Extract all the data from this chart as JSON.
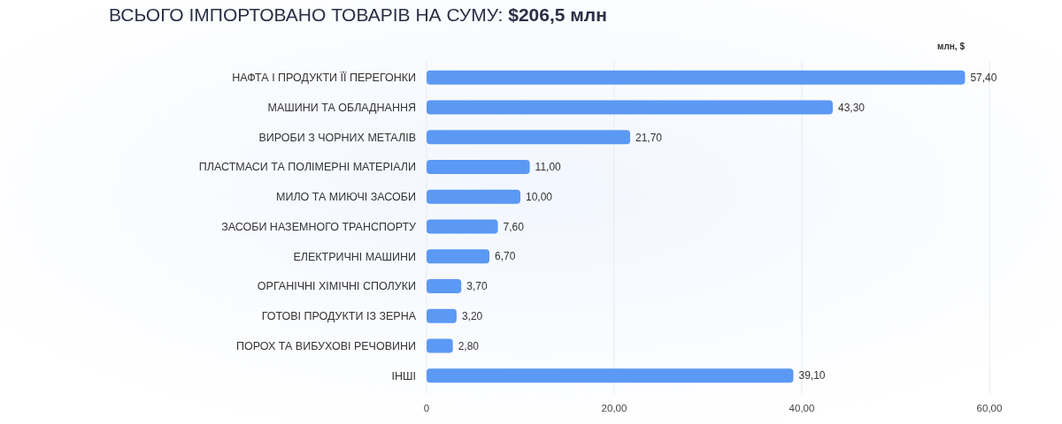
{
  "chart_data": {
    "type": "bar",
    "orientation": "horizontal",
    "title": "ВСЬОГО ІМПОРТОВАНО ТОВАРІВ НА СУМУ: $206,5 млн",
    "xlabel": "млн, $",
    "categories": [
      "НАФТА І ПРОДУКТИ ЇЇ ПЕРЕГОНКИ",
      "МАШИНИ ТА ОБЛАДНАННЯ",
      "ВИРОБИ З ЧОРНИХ МЕТАЛІВ",
      "ПЛАСТМАСИ ТА ПОЛІМЕРНІ МАТЕРІАЛИ",
      "МИЛО ТА МИЮЧІ ЗАСОБИ",
      "ЗАСОБИ НАЗЕМНОГО ТРАНСПОРТУ",
      "ЕЛЕКТРИЧНІ МАШИНИ",
      "ОРГАНІЧНІ ХІМІЧНІ СПОЛУКИ",
      "ГОТОВІ ПРОДУКТИ ІЗ ЗЕРНА",
      "ПОРОХ ТА ВИБУХОВІ РЕЧОВИНИ",
      "ІНШІ"
    ],
    "values": [
      57.4,
      43.3,
      21.7,
      11.0,
      10.0,
      7.6,
      6.7,
      3.7,
      3.2,
      2.8,
      39.1
    ],
    "value_labels": [
      "57,40",
      "43,30",
      "21,70",
      "11,00",
      "10,00",
      "7,60",
      "6,70",
      "3,70",
      "3,20",
      "2,80",
      "39,10"
    ],
    "color": "#5b99f4",
    "xlim": [
      0,
      60
    ],
    "xticks": [
      0,
      {
        "value": 20,
        "label": "20,00"
      },
      {
        "value": 40,
        "label": "40,00"
      },
      {
        "value": 60,
        "label": "60,00"
      }
    ],
    "grid": "x"
  }
}
